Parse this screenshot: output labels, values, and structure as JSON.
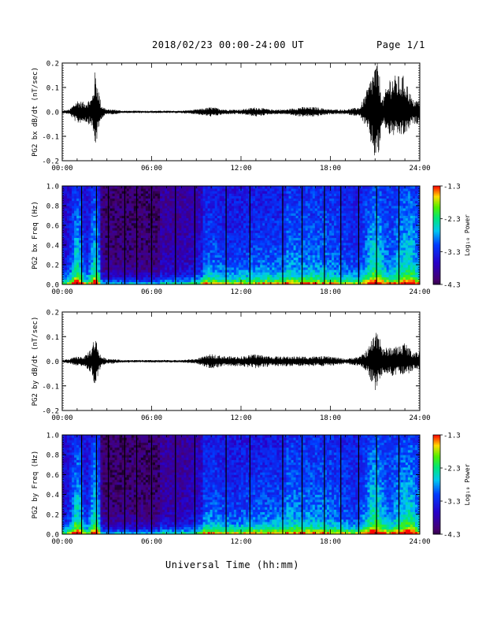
{
  "header": {
    "title": "2018/02/23  00:00-24:00 UT",
    "page": "Page 1/1"
  },
  "chart_data": [
    {
      "type": "line",
      "ylabel": "PG2 bx dB/dt (nT/sec)",
      "ylim": [
        -0.2,
        0.2
      ],
      "yticks": [
        "0.2",
        "0.1",
        "0.0",
        "-0.1",
        "-0.2"
      ],
      "ytick_values": [
        0.2,
        0.1,
        0.0,
        -0.1,
        -0.2
      ],
      "xlim": [
        0,
        24
      ],
      "xticks": [
        "00:00",
        "06:00",
        "12:00",
        "18:00",
        "24:00"
      ],
      "series": [
        {
          "envelope_hours": [
            0,
            0.5,
            1.0,
            1.5,
            2.0,
            2.2,
            2.4,
            2.6,
            3.0,
            3.5,
            4.0,
            5.0,
            6.0,
            7.0,
            8.0,
            9.0,
            10.0,
            11.0,
            12.0,
            13.0,
            14.0,
            15.0,
            16.0,
            17.0,
            18.0,
            19.0,
            20.0,
            20.5,
            21.0,
            21.2,
            21.5,
            22.0,
            22.5,
            23.0,
            23.5,
            24.0
          ],
          "envelope_max": [
            0.005,
            0.01,
            0.05,
            0.04,
            0.06,
            0.17,
            0.12,
            0.03,
            0.01,
            0.01,
            0.005,
            0.005,
            0.005,
            0.005,
            0.005,
            0.01,
            0.02,
            0.01,
            0.01,
            0.02,
            0.01,
            0.01,
            0.02,
            0.02,
            0.01,
            0.01,
            0.02,
            0.1,
            0.2,
            0.2,
            0.05,
            0.15,
            0.15,
            0.15,
            0.05,
            0.05
          ],
          "envelope_min": [
            -0.005,
            -0.01,
            -0.05,
            -0.04,
            -0.06,
            -0.15,
            -0.1,
            -0.03,
            -0.01,
            -0.01,
            -0.005,
            -0.005,
            -0.005,
            -0.005,
            -0.005,
            -0.01,
            -0.02,
            -0.01,
            -0.01,
            -0.02,
            -0.01,
            -0.01,
            -0.02,
            -0.02,
            -0.01,
            -0.01,
            -0.02,
            -0.08,
            -0.2,
            -0.2,
            -0.05,
            -0.1,
            -0.1,
            -0.1,
            -0.05,
            -0.05
          ]
        }
      ]
    },
    {
      "type": "heatmap",
      "ylabel": "PG2 bx Freq (Hz)",
      "ylim": [
        0,
        1.0
      ],
      "yticks": [
        "1.0",
        "0.8",
        "0.6",
        "0.4",
        "0.2",
        "0.0"
      ],
      "ytick_values": [
        1.0,
        0.8,
        0.6,
        0.4,
        0.2,
        0.0
      ],
      "xlim": [
        0,
        24
      ],
      "xticks": [
        "00:00",
        "06:00",
        "12:00",
        "18:00",
        "24:00"
      ],
      "colorbar": {
        "label": "Log₁₀ Power",
        "ticks": [
          "-1.3",
          "-2.3",
          "-3.3",
          "-4.3"
        ],
        "tick_values": [
          -1.3,
          -2.3,
          -3.3,
          -4.3
        ],
        "range": [
          -4.3,
          -1.3
        ]
      },
      "gap_lines_hours": [
        1.3,
        2.3,
        3.1,
        4.2,
        5.0,
        6.0,
        7.6,
        8.9,
        11.0,
        12.6,
        14.8,
        16.1,
        17.6,
        18.7,
        19.9,
        21.1,
        22.6
      ]
    },
    {
      "type": "line",
      "ylabel": "PG2 by dB/dt (nT/sec)",
      "ylim": [
        -0.2,
        0.2
      ],
      "yticks": [
        "0.2",
        "0.1",
        "0.0",
        "-0.1",
        "-0.2"
      ],
      "ytick_values": [
        0.2,
        0.1,
        0.0,
        -0.1,
        -0.2
      ],
      "xlim": [
        0,
        24
      ],
      "xticks": [
        "00:00",
        "06:00",
        "12:00",
        "18:00",
        "24:00"
      ],
      "series": [
        {
          "envelope_hours": [
            0,
            0.5,
            1.0,
            1.5,
            2.0,
            2.2,
            2.4,
            2.6,
            3.0,
            3.5,
            4.0,
            5.0,
            6.0,
            7.0,
            8.0,
            9.0,
            10.0,
            11.0,
            12.0,
            13.0,
            14.0,
            15.0,
            16.0,
            17.0,
            18.0,
            19.0,
            20.0,
            20.5,
            21.0,
            21.2,
            21.5,
            22.0,
            22.5,
            23.0,
            23.5,
            24.0
          ],
          "envelope_max": [
            0.005,
            0.01,
            0.02,
            0.02,
            0.06,
            0.11,
            0.06,
            0.02,
            0.01,
            0.01,
            0.005,
            0.005,
            0.005,
            0.005,
            0.005,
            0.01,
            0.03,
            0.02,
            0.02,
            0.03,
            0.02,
            0.02,
            0.02,
            0.02,
            0.02,
            0.01,
            0.02,
            0.05,
            0.12,
            0.15,
            0.05,
            0.06,
            0.06,
            0.08,
            0.04,
            0.04
          ],
          "envelope_min": [
            -0.005,
            -0.01,
            -0.02,
            -0.02,
            -0.05,
            -0.11,
            -0.06,
            -0.02,
            -0.01,
            -0.01,
            -0.005,
            -0.005,
            -0.005,
            -0.005,
            -0.005,
            -0.01,
            -0.03,
            -0.02,
            -0.02,
            -0.03,
            -0.02,
            -0.02,
            -0.02,
            -0.02,
            -0.02,
            -0.01,
            -0.02,
            -0.05,
            -0.12,
            -0.1,
            -0.05,
            -0.06,
            -0.06,
            -0.06,
            -0.04,
            -0.04
          ]
        }
      ]
    },
    {
      "type": "heatmap",
      "ylabel": "PG2 by Freq (Hz)",
      "ylim": [
        0,
        1.0
      ],
      "yticks": [
        "1.0",
        "0.8",
        "0.6",
        "0.4",
        "0.2",
        "0.0"
      ],
      "ytick_values": [
        1.0,
        0.8,
        0.6,
        0.4,
        0.2,
        0.0
      ],
      "xlim": [
        0,
        24
      ],
      "xticks": [
        "00:00",
        "06:00",
        "12:00",
        "18:00",
        "24:00"
      ],
      "colorbar": {
        "label": "Log₁₀ Power",
        "ticks": [
          "-1.3",
          "-2.3",
          "-3.3",
          "-4.3"
        ],
        "tick_values": [
          -1.3,
          -2.3,
          -3.3,
          -4.3
        ],
        "range": [
          -4.3,
          -1.3
        ]
      },
      "gap_lines_hours": [
        1.3,
        2.3,
        3.1,
        4.2,
        5.0,
        6.0,
        7.6,
        8.9,
        11.0,
        12.6,
        14.8,
        16.1,
        17.6,
        18.7,
        19.9,
        21.1,
        22.6
      ]
    }
  ],
  "xlabel": "Universal Time (hh:mm)"
}
